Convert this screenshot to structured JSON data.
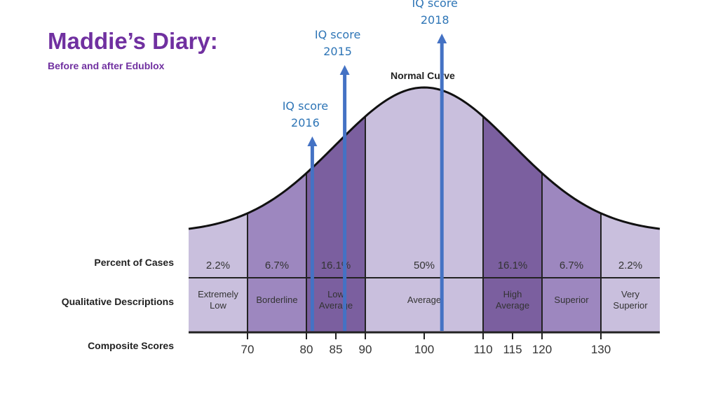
{
  "title": "Maddie’s Diary:",
  "subtitle": "Before and after Edublox",
  "chart_data": {
    "type": "normal-curve",
    "curve_label": "Normal Curve",
    "mean": 100,
    "sd": 15,
    "xlim": [
      60,
      140
    ],
    "row_labels": {
      "percent": "Percent of Cases",
      "description": "Qualitative Descriptions",
      "scores": "Composite Scores"
    },
    "bands": [
      {
        "from": 60,
        "to": 70,
        "percent": "2.2%",
        "description": [
          "Extremely",
          "Low"
        ],
        "shade": "light"
      },
      {
        "from": 70,
        "to": 80,
        "percent": "6.7%",
        "description": [
          "Borderline"
        ],
        "shade": "mid"
      },
      {
        "from": 80,
        "to": 90,
        "percent": "16.1%",
        "description": [
          "Low",
          "Average"
        ],
        "shade": "dark"
      },
      {
        "from": 90,
        "to": 110,
        "percent": "50%",
        "description": [
          "Average"
        ],
        "shade": "light"
      },
      {
        "from": 110,
        "to": 120,
        "percent": "16.1%",
        "description": [
          "High",
          "Average"
        ],
        "shade": "dark"
      },
      {
        "from": 120,
        "to": 130,
        "percent": "6.7%",
        "description": [
          "Superior"
        ],
        "shade": "mid"
      },
      {
        "from": 130,
        "to": 140,
        "percent": "2.2%",
        "description": [
          "Very",
          "Superior"
        ],
        "shade": "light"
      }
    ],
    "ticks": [
      70,
      80,
      85,
      90,
      100,
      110,
      115,
      120,
      130
    ],
    "markers": [
      {
        "label": [
          "IQ score",
          "2016"
        ],
        "score": 81
      },
      {
        "label": [
          "IQ score",
          "2015"
        ],
        "score": 86.5
      },
      {
        "label": [
          "IQ score",
          "2018"
        ],
        "score": 103
      }
    ],
    "colors": {
      "light": "#c9bfdd",
      "mid": "#9d87bf",
      "dark": "#7b5f9f",
      "marker": "#4472c4",
      "marker_text": "#2e75b6",
      "title": "#7030a0"
    }
  }
}
